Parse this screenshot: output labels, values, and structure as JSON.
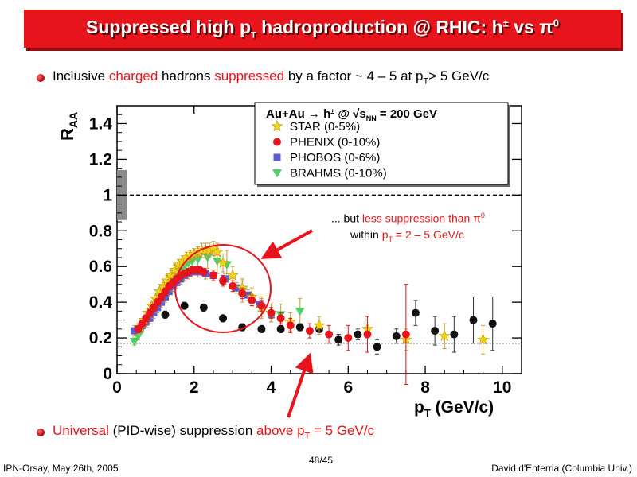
{
  "slide": {
    "title_main": "Suppressed high p",
    "title_sub": "T",
    "title_rest": " hadroproduction @ RHIC: h",
    "title_pm": "±",
    "title_vs": " vs π",
    "title_zero": "0",
    "bullet1": {
      "a": "Inclusive ",
      "b": "charged",
      "c": " hadrons ",
      "d": "suppressed",
      "e": " by a factor ~ 4 – 5 at p",
      "f": "T",
      "g": "> 5 GeV/c"
    },
    "bullet2": {
      "a": "Universal",
      "b": " (PID-wise) suppression ",
      "c": "above p",
      "d": "T",
      "e": " = 5 GeV/c"
    },
    "annotation": {
      "line1_a": "... but ",
      "line1_b": "less suppression than π",
      "line1_c": "0",
      "line2_a": "within ",
      "line2_b": "p",
      "line2_c": "T",
      "line2_d": " = 2 – 5 GeV/c"
    },
    "footer_left": "IPN-Orsay, May 26th, 2005",
    "footer_center": "48/45",
    "footer_right": "David d'Enterria (Columbia Univ.)"
  },
  "chart_data": {
    "type": "scatter",
    "xlabel": "p",
    "xlabel_sub": "T",
    "xlabel_unit": " (GeV/c)",
    "ylabel": "R",
    "ylabel_sub": "AA",
    "xlim": [
      0,
      10.5
    ],
    "ylim": [
      0,
      1.5
    ],
    "x_ticks": [
      0,
      2,
      4,
      6,
      8,
      10
    ],
    "y_ticks": [
      0,
      0.2,
      0.4,
      0.6,
      0.8,
      1,
      1.2,
      1.4
    ],
    "y_tick_labels": [
      "0",
      "0.2",
      "0.4",
      "0.6",
      "0.8",
      "1",
      "1.2",
      "1.4"
    ],
    "reference_lines": [
      1.0,
      0.17
    ],
    "normalization_band": {
      "y_low": 0.86,
      "y_high": 1.14
    },
    "legend": {
      "header": "Au+Au → h",
      "header_pm": "±",
      "header_at": " @ √s",
      "header_nn": "NN",
      "header_energy": " = 200 GeV",
      "position": "top-right"
    },
    "series": [
      {
        "name": "STAR (0-5%)",
        "marker": "star",
        "color": "#f2d21c",
        "x": [
          0.6,
          0.7,
          0.8,
          0.9,
          1.0,
          1.1,
          1.2,
          1.3,
          1.4,
          1.5,
          1.6,
          1.7,
          1.8,
          1.9,
          2.0,
          2.1,
          2.2,
          2.3,
          2.4,
          2.5,
          2.6,
          2.75,
          3.0,
          3.25,
          3.5,
          3.75,
          4.0,
          4.5,
          5.25,
          6.5,
          7.5,
          8.5,
          9.5
        ],
        "y": [
          0.26,
          0.3,
          0.34,
          0.38,
          0.42,
          0.46,
          0.49,
          0.52,
          0.55,
          0.58,
          0.61,
          0.63,
          0.65,
          0.66,
          0.67,
          0.68,
          0.69,
          0.69,
          0.69,
          0.7,
          0.68,
          0.62,
          0.55,
          0.48,
          0.43,
          0.37,
          0.34,
          0.29,
          0.27,
          0.25,
          0.19,
          0.21,
          0.19
        ],
        "yerr": [
          0.02,
          0.02,
          0.02,
          0.02,
          0.02,
          0.02,
          0.02,
          0.03,
          0.03,
          0.03,
          0.03,
          0.03,
          0.03,
          0.03,
          0.03,
          0.03,
          0.04,
          0.04,
          0.04,
          0.04,
          0.05,
          0.05,
          0.05,
          0.05,
          0.05,
          0.05,
          0.05,
          0.05,
          0.05,
          0.05,
          0.06,
          0.07,
          0.08
        ]
      },
      {
        "name": "PHENIX (0-10%)",
        "marker": "circle",
        "color": "#e8141c",
        "x": [
          0.55,
          0.65,
          0.75,
          0.85,
          0.95,
          1.05,
          1.15,
          1.25,
          1.35,
          1.45,
          1.55,
          1.65,
          1.75,
          1.85,
          1.95,
          2.05,
          2.15,
          2.25,
          2.5,
          2.75,
          3.0,
          3.25,
          3.5,
          3.75,
          4.0,
          4.25,
          4.5,
          5.0,
          5.5,
          6.0,
          6.5,
          7.5
        ],
        "y": [
          0.25,
          0.28,
          0.31,
          0.34,
          0.37,
          0.4,
          0.43,
          0.46,
          0.49,
          0.51,
          0.53,
          0.55,
          0.56,
          0.57,
          0.58,
          0.58,
          0.58,
          0.57,
          0.55,
          0.52,
          0.49,
          0.45,
          0.41,
          0.38,
          0.34,
          0.31,
          0.27,
          0.24,
          0.22,
          0.2,
          0.22,
          0.22
        ],
        "yerr": [
          0.02,
          0.02,
          0.02,
          0.02,
          0.02,
          0.02,
          0.02,
          0.02,
          0.02,
          0.02,
          0.02,
          0.02,
          0.02,
          0.02,
          0.02,
          0.02,
          0.02,
          0.02,
          0.03,
          0.03,
          0.03,
          0.03,
          0.03,
          0.03,
          0.03,
          0.03,
          0.04,
          0.04,
          0.05,
          0.07,
          0.1,
          0.28
        ]
      },
      {
        "name": "PHOBOS (0-6%)",
        "marker": "square",
        "color": "#5b5bd6",
        "x": [
          0.45,
          0.55,
          0.65,
          0.75,
          0.85,
          0.95,
          1.05,
          1.15,
          1.25,
          1.35,
          1.45,
          1.55,
          1.65,
          1.75,
          1.85,
          1.95,
          2.1,
          2.3,
          2.5,
          2.8,
          3.1,
          3.4,
          3.7,
          4.0
        ],
        "y": [
          0.24,
          0.25,
          0.27,
          0.29,
          0.31,
          0.34,
          0.37,
          0.4,
          0.43,
          0.46,
          0.49,
          0.51,
          0.53,
          0.55,
          0.56,
          0.57,
          0.57,
          0.56,
          0.55,
          0.53,
          0.48,
          0.44,
          0.39,
          0.33
        ],
        "yerr": [
          0.03,
          0.03,
          0.03,
          0.03,
          0.03,
          0.03,
          0.03,
          0.03,
          0.03,
          0.03,
          0.03,
          0.03,
          0.03,
          0.03,
          0.03,
          0.03,
          0.03,
          0.03,
          0.03,
          0.03,
          0.03,
          0.03,
          0.04,
          0.04
        ]
      },
      {
        "name": "BRAHMS (0-10%)",
        "marker": "triangle",
        "color": "#4fd16a",
        "x": [
          0.45,
          0.55,
          0.65,
          0.75,
          0.85,
          0.95,
          1.05,
          1.15,
          1.25,
          1.35,
          1.45,
          1.55,
          1.65,
          1.75,
          1.85,
          1.95,
          2.1,
          2.35,
          2.6,
          2.85,
          3.25,
          3.75,
          4.25,
          4.75
        ],
        "y": [
          0.18,
          0.21,
          0.25,
          0.29,
          0.33,
          0.37,
          0.4,
          0.44,
          0.47,
          0.5,
          0.53,
          0.55,
          0.58,
          0.6,
          0.62,
          0.63,
          0.64,
          0.65,
          0.63,
          0.61,
          0.46,
          0.37,
          0.33,
          0.35
        ],
        "yerr": [
          0.02,
          0.02,
          0.02,
          0.02,
          0.02,
          0.02,
          0.02,
          0.03,
          0.03,
          0.03,
          0.03,
          0.03,
          0.03,
          0.04,
          0.04,
          0.04,
          0.05,
          0.06,
          0.07,
          0.08,
          0.06,
          0.06,
          0.06,
          0.07
        ]
      },
      {
        "marker": "circle",
        "color": "#111111",
        "x": [
          1.25,
          1.75,
          2.25,
          2.75,
          3.25,
          3.75,
          4.25,
          4.75,
          5.25,
          5.75,
          6.25,
          6.75,
          7.25,
          7.75,
          8.25,
          8.75,
          9.25,
          9.75
        ],
        "y": [
          0.33,
          0.38,
          0.37,
          0.31,
          0.26,
          0.25,
          0.25,
          0.26,
          0.25,
          0.19,
          0.22,
          0.15,
          0.21,
          0.34,
          0.24,
          0.22,
          0.3,
          0.28
        ],
        "yerr": [
          0.02,
          0.02,
          0.02,
          0.02,
          0.02,
          0.02,
          0.02,
          0.02,
          0.02,
          0.03,
          0.03,
          0.04,
          0.04,
          0.07,
          0.08,
          0.1,
          0.13,
          0.15
        ]
      }
    ]
  }
}
